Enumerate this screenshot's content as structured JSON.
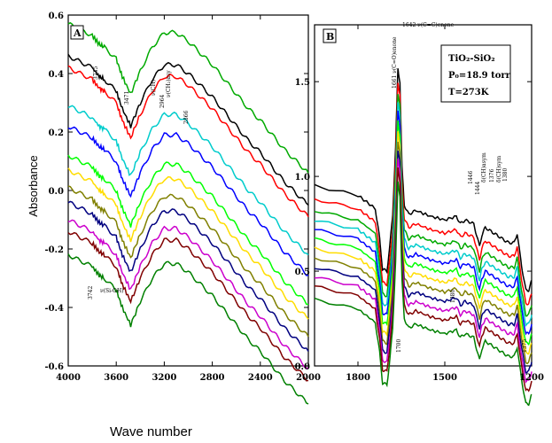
{
  "chart_data": [
    {
      "type": "line",
      "panel_label": "A",
      "xlim": [
        4000,
        2000
      ],
      "ylim": [
        -0.6,
        0.6
      ],
      "x_ticks": [
        "4000",
        "3600",
        "3200",
        "2800",
        "2400",
        "2000"
      ],
      "y_ticks": [
        "0.6",
        "0.4",
        "0.2",
        "0.0",
        "-0.2",
        "-0.4",
        "-0.6"
      ],
      "ylabel": "Absorbance",
      "annotations": [
        "3735",
        "3471",
        "ν(CH)",
        "2964",
        "ν(CH₂)asy",
        "2866",
        "3742",
        "ν(Si-OH)"
      ],
      "x": [
        4000,
        3900,
        3800,
        3742,
        3700,
        3600,
        3550,
        3480,
        3400,
        3300,
        3200,
        3100,
        3000,
        2900,
        2800,
        2700,
        2600,
        2500,
        2400,
        2300,
        2200,
        2100,
        2000
      ],
      "shape": [
        0.02,
        0.0,
        -0.02,
        -0.05,
        -0.06,
        -0.1,
        -0.16,
        -0.22,
        -0.14,
        -0.06,
        -0.01,
        -0.01,
        -0.04,
        -0.08,
        -0.12,
        -0.17,
        -0.22,
        -0.27,
        -0.31,
        -0.36,
        -0.41,
        -0.45,
        -0.49
      ],
      "series": [
        {
          "color": "#000000",
          "offset": 0.44
        },
        {
          "color": "#ff0000",
          "offset": 0.4
        },
        {
          "color": "#00aa00",
          "offset": 0.55
        },
        {
          "color": "#00cccc",
          "offset": 0.27
        },
        {
          "color": "#0000ff",
          "offset": 0.2
        },
        {
          "color": "#00ff00",
          "offset": 0.1
        },
        {
          "color": "#ffdd00",
          "offset": 0.05
        },
        {
          "color": "#808000",
          "offset": -0.01
        },
        {
          "color": "#000080",
          "offset": -0.06
        },
        {
          "color": "#cc00cc",
          "offset": -0.12
        },
        {
          "color": "#800000",
          "offset": -0.16
        },
        {
          "color": "#008000",
          "offset": -0.24
        }
      ]
    },
    {
      "type": "line",
      "panel_label": "B",
      "xlim": [
        1950,
        1200
      ],
      "ylim": [
        0.0,
        1.8
      ],
      "x_ticks": [
        "1800",
        "1500",
        "1200"
      ],
      "y_ticks": [
        "1.5",
        "1.0",
        "0.5",
        "0.0"
      ],
      "conditions": [
        "TiO₂-SiO₂",
        "P₀=18.9 torr",
        "T=273K"
      ],
      "annotations": [
        "1642 ν(C=C)enone",
        "1661 ν(C=O)enone",
        "1446",
        "1444",
        "δ(CH)asym",
        "1376",
        "δ(CH)sym",
        "1380",
        "1380",
        "1375",
        "1700"
      ],
      "x": [
        1950,
        1800,
        1740,
        1725,
        1715,
        1700,
        1690,
        1680,
        1670,
        1662,
        1655,
        1648,
        1640,
        1625,
        1600,
        1550,
        1500,
        1460,
        1446,
        1430,
        1400,
        1380,
        1372,
        1360,
        1330,
        1300,
        1280,
        1260,
        1250,
        1235,
        1220,
        1210,
        1200
      ],
      "shape": [
        0.0,
        -0.05,
        -0.12,
        -0.28,
        -0.44,
        -0.45,
        -0.32,
        -0.15,
        0.2,
        0.62,
        0.55,
        0.1,
        -0.1,
        -0.15,
        -0.13,
        -0.16,
        -0.18,
        -0.16,
        -0.2,
        -0.18,
        -0.2,
        -0.32,
        -0.26,
        -0.22,
        -0.25,
        -0.28,
        -0.3,
        -0.3,
        -0.25,
        -0.42,
        -0.55,
        -0.55,
        -0.5
      ],
      "series": [
        {
          "color": "#000000",
          "offset": 0.95
        },
        {
          "color": "#ff0000",
          "offset": 0.88
        },
        {
          "color": "#00aa00",
          "offset": 0.82
        },
        {
          "color": "#00cccc",
          "offset": 0.77
        },
        {
          "color": "#0000ff",
          "offset": 0.72
        },
        {
          "color": "#00ff00",
          "offset": 0.67
        },
        {
          "color": "#ffdd00",
          "offset": 0.62
        },
        {
          "color": "#808000",
          "offset": 0.57
        },
        {
          "color": "#000080",
          "offset": 0.52
        },
        {
          "color": "#cc00cc",
          "offset": 0.47
        },
        {
          "color": "#800000",
          "offset": 0.42
        },
        {
          "color": "#008000",
          "offset": 0.35
        }
      ]
    }
  ],
  "xlabel": "Wave number"
}
